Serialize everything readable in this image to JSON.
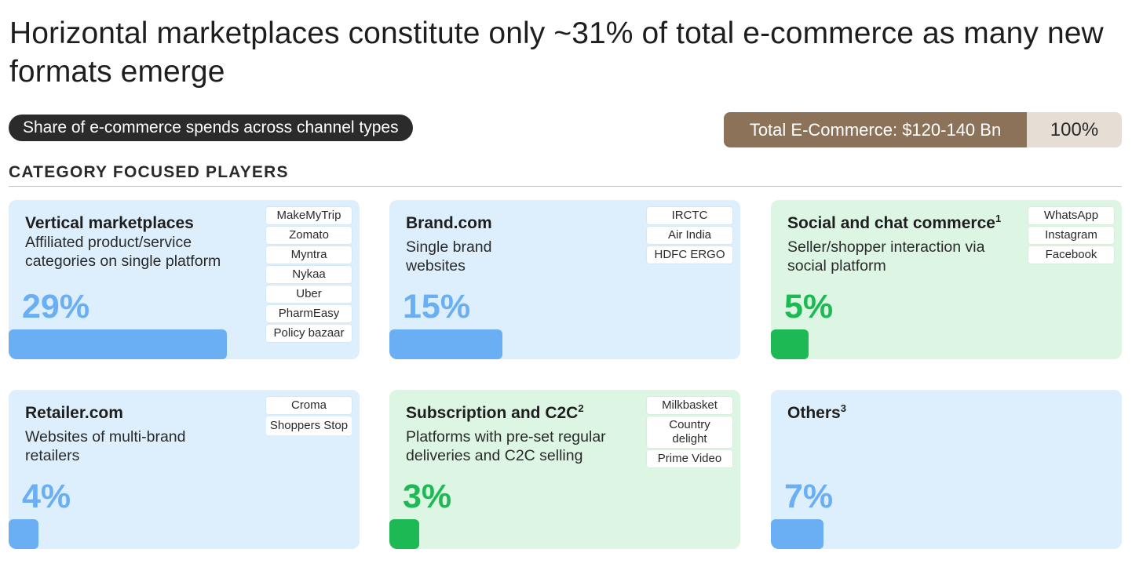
{
  "title": "Horizontal marketplaces constitute only ~31% of total e-commerce as many new formats emerge",
  "chart_label": "Share of e-commerce spends across channel types",
  "total": {
    "label": "Total E-Commerce: $120-140 Bn",
    "value": "100%"
  },
  "section_title": "CATEGORY FOCUSED PLAYERS",
  "colors": {
    "blue": "#6aaef3",
    "green": "#1db954",
    "blue_bg": "#ddeefc",
    "green_bg": "#ddf6e3",
    "total_brown": "#8c7259",
    "total_light": "#e6ded5"
  },
  "chart_data": {
    "type": "bar",
    "title": "Share of e-commerce spends across channel types",
    "unit": "%",
    "total_label": "Total E-Commerce: $120-140 Bn",
    "total_value": 100,
    "categories": [
      "Vertical marketplaces",
      "Brand.com",
      "Social and chat commerce",
      "Retailer.com",
      "Subscription and C2C",
      "Others"
    ],
    "values": [
      29,
      15,
      5,
      4,
      3,
      7
    ]
  },
  "cards": [
    {
      "title": "Vertical marketplaces",
      "sup": "",
      "description": "Affiliated product/service categories on single platform",
      "value_label": "29%",
      "color": "blue",
      "examples": [
        "MakeMyTrip",
        "Zomato",
        "Myntra",
        "Nykaa",
        "Uber",
        "PharmEasy",
        "Policy bazaar"
      ]
    },
    {
      "title": "Brand.com",
      "sup": "",
      "description": "Single brand websites",
      "value_label": "15%",
      "color": "blue",
      "examples": [
        "IRCTC",
        "Air India",
        "HDFC ERGO"
      ]
    },
    {
      "title": "Social and chat commerce",
      "sup": "1",
      "description": "Seller/shopper interaction via social platform",
      "value_label": "5%",
      "color": "green",
      "examples": [
        "WhatsApp",
        "Instagram",
        "Facebook"
      ]
    },
    {
      "title": "Retailer.com",
      "sup": "",
      "description": "Websites of multi-brand retailers",
      "value_label": "4%",
      "color": "blue",
      "examples": [
        "Croma",
        "Shoppers Stop"
      ]
    },
    {
      "title": "Subscription and C2C",
      "sup": "2",
      "description": "Platforms with pre-set regular deliveries and C2C selling",
      "value_label": "3%",
      "color": "green",
      "examples": [
        "Milkbasket",
        "Country delight",
        "Prime Video"
      ]
    },
    {
      "title": "Others",
      "sup": "3",
      "description": "",
      "value_label": "7%",
      "color": "blue",
      "examples": []
    }
  ]
}
